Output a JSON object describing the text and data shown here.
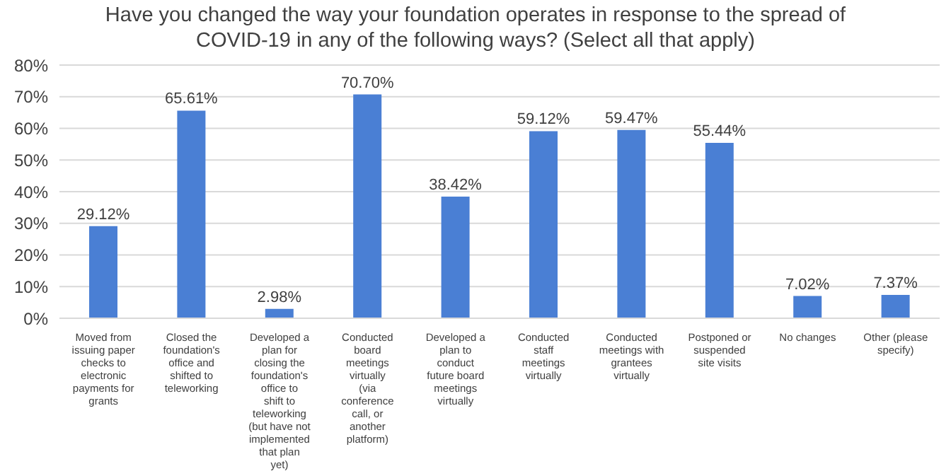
{
  "chart_data": {
    "type": "bar",
    "title": "Have you changed the way your foundation operates in response to the spread of COVID-19 in any of the following ways? (Select all that apply)",
    "categories": [
      "Moved from issuing paper checks to electronic payments for grants",
      "Closed the foundation's office and shifted to teleworking",
      "Developed a plan for closing the foundation's office to shift to teleworking (but have not implemented that plan yet)",
      "Conducted board meetings virtually (via conference call, or another platform)",
      "Developed a plan to conduct future board meetings virtually",
      "Conducted staff meetings virtually",
      "Conducted meetings with grantees virtually",
      "Postponed or suspended site visits",
      "No changes",
      "Other (please specify)"
    ],
    "values": [
      29.12,
      65.61,
      2.98,
      70.7,
      38.42,
      59.12,
      59.47,
      55.44,
      7.02,
      7.37
    ],
    "value_labels": [
      "29.12%",
      "65.61%",
      "2.98%",
      "70.70%",
      "38.42%",
      "59.12%",
      "59.47%",
      "55.44%",
      "7.02%",
      "7.37%"
    ],
    "color": "#4a7fd4",
    "ylim": [
      0,
      80
    ],
    "yticks": [
      {
        "value": 0,
        "label": "0%"
      },
      {
        "value": 10,
        "label": "10%"
      },
      {
        "value": 20,
        "label": "20%"
      },
      {
        "value": 30,
        "label": "30%"
      },
      {
        "value": 40,
        "label": "40%"
      },
      {
        "value": 50,
        "label": "50%"
      },
      {
        "value": 60,
        "label": "60%"
      },
      {
        "value": 70,
        "label": "70%"
      },
      {
        "value": 80,
        "label": "80%"
      }
    ],
    "grid": "y",
    "legend": false
  }
}
